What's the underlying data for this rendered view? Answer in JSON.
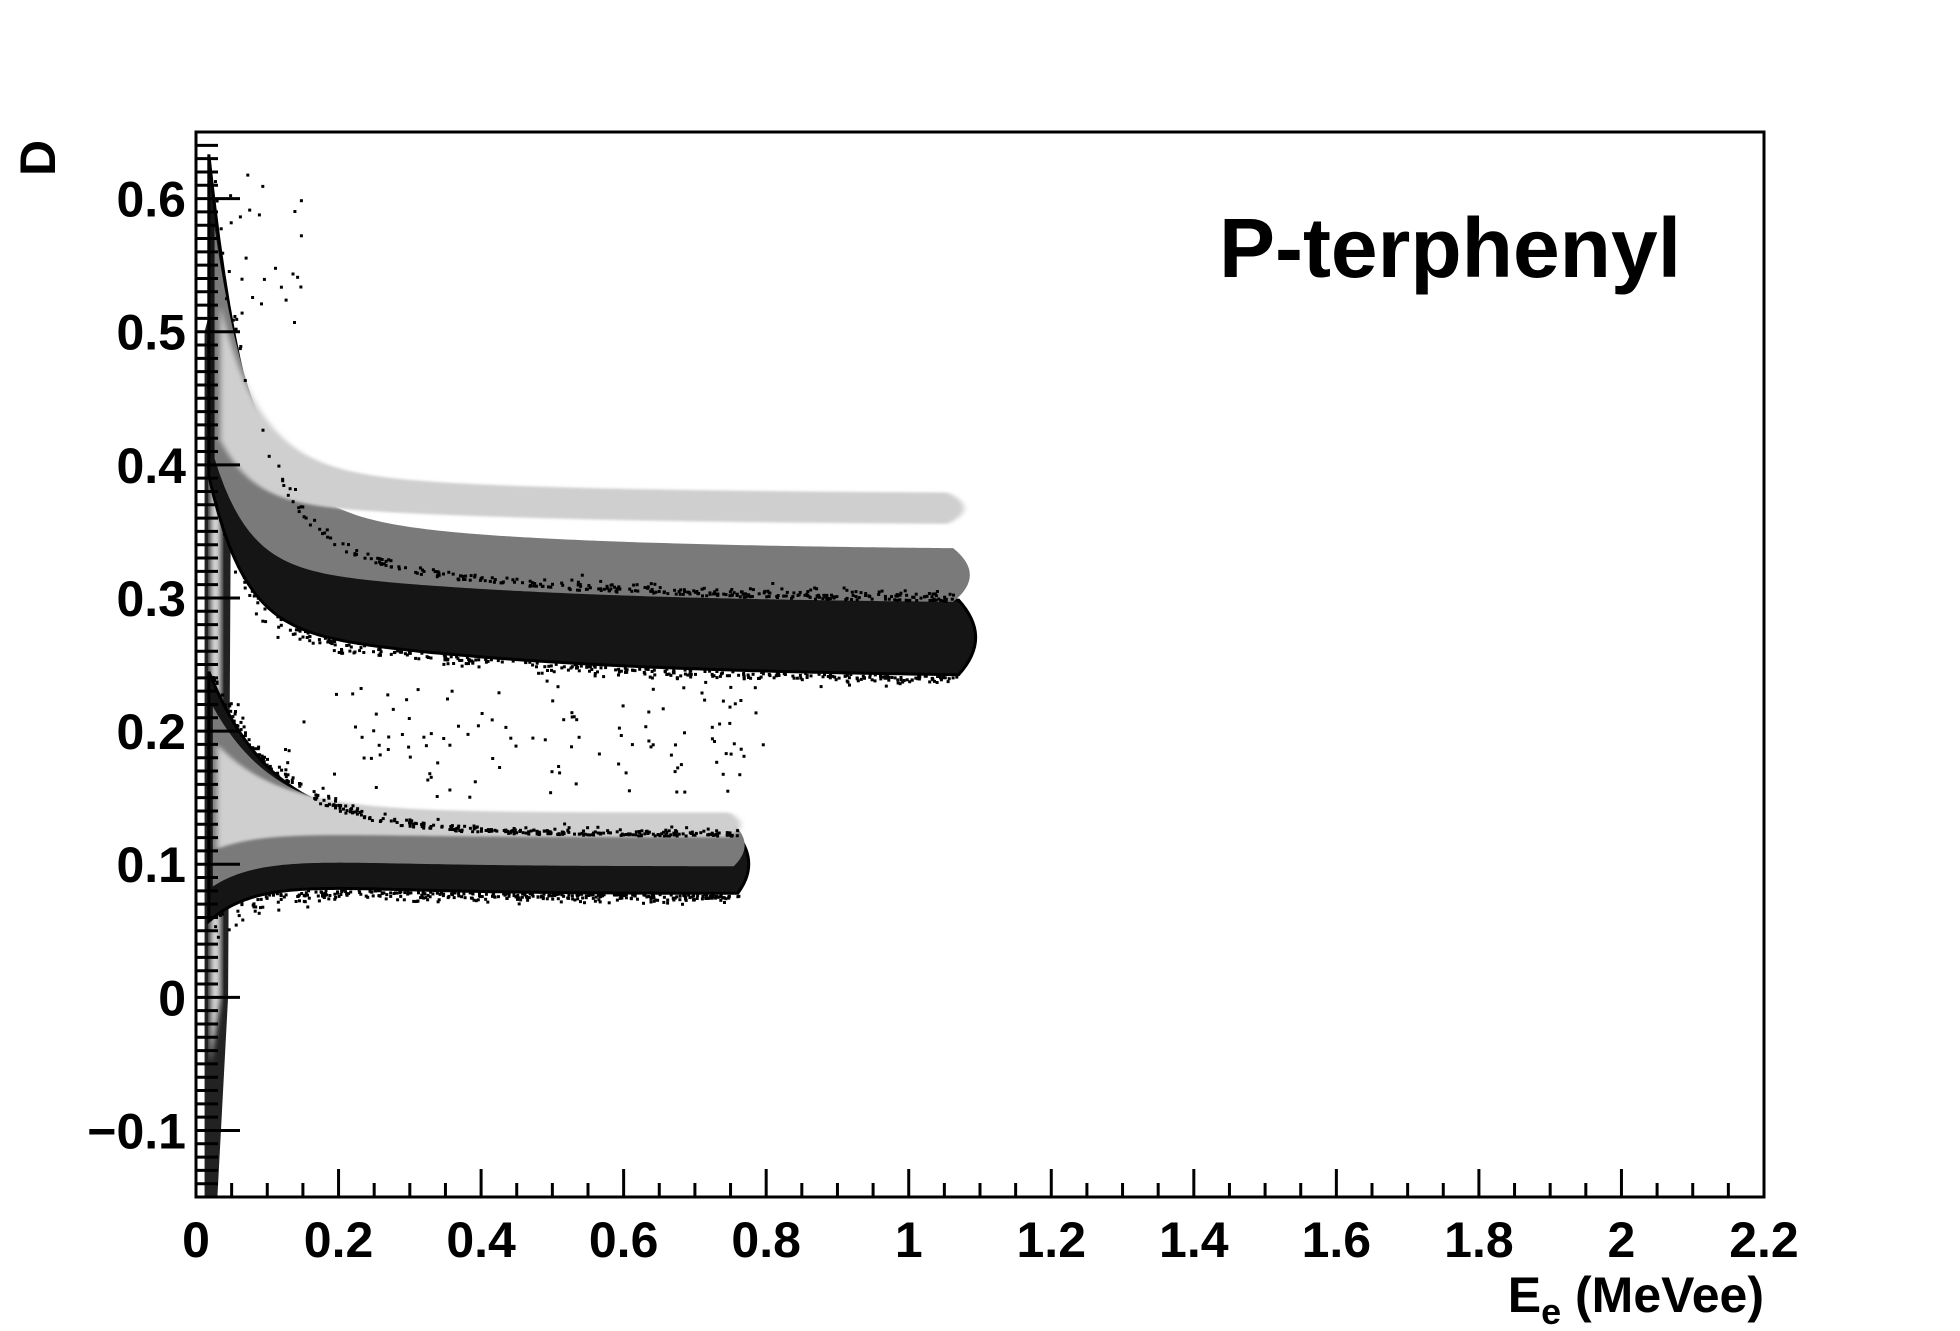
{
  "chart_data": {
    "type": "heatmap",
    "title": "",
    "annotation": "P-terphenyl",
    "xlabel": {
      "main": "E",
      "sub": "e",
      "unit": " (MeVee)"
    },
    "ylabel": "D",
    "xlim": [
      0,
      2.2
    ],
    "ylim": [
      -0.15,
      0.65
    ],
    "xticks": [
      0,
      0.2,
      0.4,
      0.6,
      0.8,
      1,
      1.2,
      1.4,
      1.6,
      1.8,
      2,
      2.2
    ],
    "xtick_labels": [
      "0",
      "0.2",
      "0.4",
      "0.6",
      "0.8",
      "1",
      "1.2",
      "1.4",
      "1.6",
      "1.8",
      "2",
      "2.2"
    ],
    "yticks": [
      -0.1,
      0,
      0.1,
      0.2,
      0.3,
      0.4,
      0.5,
      0.6
    ],
    "ytick_labels": [
      "−0.1",
      "0",
      "0.1",
      "0.2",
      "0.3",
      "0.4",
      "0.5",
      "0.6"
    ],
    "grid": false,
    "colormap": "grayscale (dense = light gray, sparse edge = black)",
    "bands": [
      {
        "name": "",
        "description": "upper band",
        "x_range": [
          0.02,
          1.12
        ],
        "y_center": [
          0.42,
          0.34,
          0.31,
          0.295,
          0.285,
          0.278,
          0.274,
          0.27
        ],
        "x_nodes": [
          0.03,
          0.1,
          0.2,
          0.35,
          0.5,
          0.7,
          0.9,
          1.05
        ]
      },
      {
        "name": "",
        "description": "lower band",
        "x_range": [
          0.02,
          0.77
        ],
        "y_center": [
          0.14,
          0.12,
          0.11,
          0.105,
          0.102,
          0.1
        ],
        "x_nodes": [
          0.03,
          0.1,
          0.2,
          0.4,
          0.6,
          0.75
        ]
      }
    ]
  }
}
